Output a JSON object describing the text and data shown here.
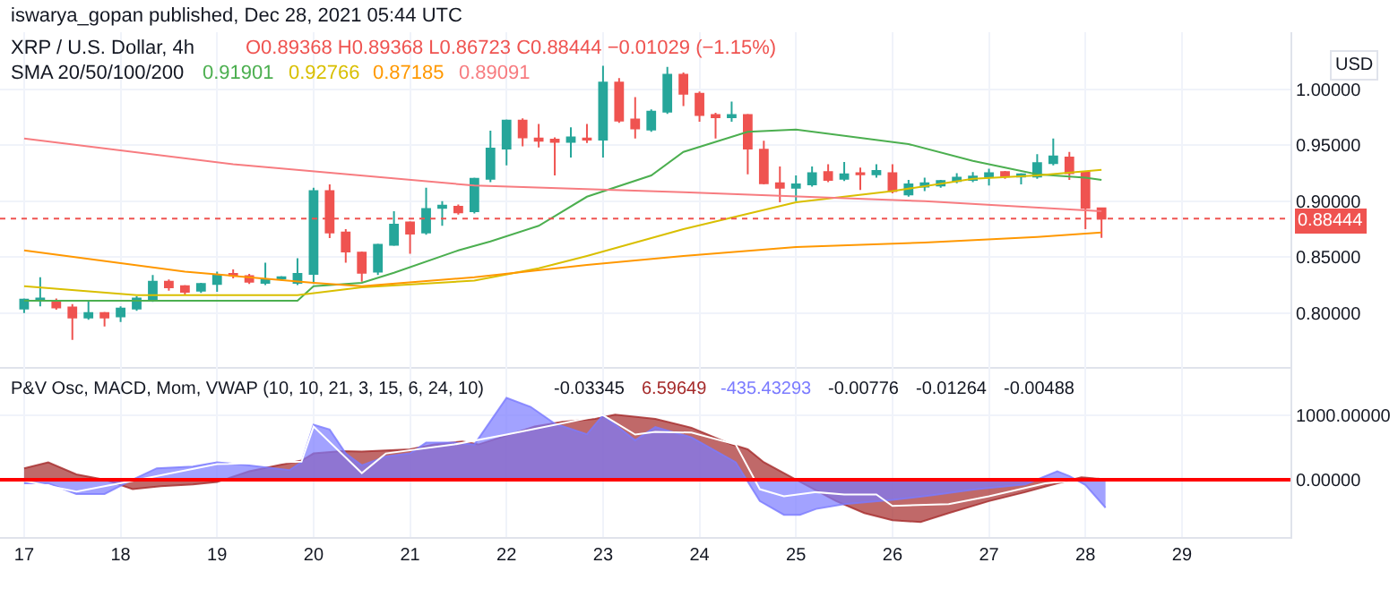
{
  "chart_data": [
    {
      "type": "candlestick",
      "title": "XRP / U.S. Dollar, 4h",
      "subtitle": "O0.89368 H0.89368 L0.86723 C0.88444 −0.01029 (−1.15%)",
      "ylabel": "USD",
      "annotations": [
        "iswarya_gopan published, Dec 28, 2021 05:44 UTC",
        "SMA 20/50/100/200"
      ],
      "x": [
        "2021-12-17T00:00",
        "2021-12-17T04:00",
        "2021-12-17T08:00",
        "2021-12-17T12:00",
        "2021-12-17T16:00",
        "2021-12-17T20:00",
        "2021-12-18T00:00",
        "2021-12-18T04:00",
        "2021-12-18T08:00",
        "2021-12-18T12:00",
        "2021-12-18T16:00",
        "2021-12-18T20:00",
        "2021-12-19T00:00",
        "2021-12-19T04:00",
        "2021-12-19T08:00",
        "2021-12-19T12:00",
        "2021-12-19T16:00",
        "2021-12-19T20:00",
        "2021-12-20T00:00",
        "2021-12-20T04:00",
        "2021-12-20T08:00",
        "2021-12-20T12:00",
        "2021-12-20T16:00",
        "2021-12-20T20:00",
        "2021-12-21T00:00",
        "2021-12-21T04:00",
        "2021-12-21T08:00",
        "2021-12-21T12:00",
        "2021-12-21T16:00",
        "2021-12-21T20:00",
        "2021-12-22T00:00",
        "2021-12-22T04:00",
        "2021-12-22T08:00",
        "2021-12-22T12:00",
        "2021-12-22T16:00",
        "2021-12-22T20:00",
        "2021-12-23T00:00",
        "2021-12-23T04:00",
        "2021-12-23T08:00",
        "2021-12-23T12:00",
        "2021-12-23T16:00",
        "2021-12-23T20:00",
        "2021-12-24T00:00",
        "2021-12-24T04:00",
        "2021-12-24T08:00",
        "2021-12-24T12:00",
        "2021-12-24T16:00",
        "2021-12-24T20:00",
        "2021-12-25T00:00",
        "2021-12-25T04:00",
        "2021-12-25T08:00",
        "2021-12-25T12:00",
        "2021-12-25T16:00",
        "2021-12-25T20:00",
        "2021-12-26T00:00",
        "2021-12-26T04:00",
        "2021-12-26T08:00",
        "2021-12-26T12:00",
        "2021-12-26T16:00",
        "2021-12-26T20:00",
        "2021-12-27T00:00",
        "2021-12-27T04:00",
        "2021-12-27T08:00",
        "2021-12-27T12:00",
        "2021-12-27T16:00",
        "2021-12-27T20:00",
        "2021-12-28T00:00",
        "2021-12-28T04:00"
      ],
      "ohlc": [
        [
          0.804,
          0.813,
          0.8,
          0.812
        ],
        [
          0.811,
          0.832,
          0.806,
          0.813
        ],
        [
          0.811,
          0.813,
          0.803,
          0.805
        ],
        [
          0.805,
          0.808,
          0.776,
          0.796
        ],
        [
          0.796,
          0.811,
          0.794,
          0.8
        ],
        [
          0.8,
          0.801,
          0.788,
          0.796
        ],
        [
          0.797,
          0.806,
          0.792,
          0.804
        ],
        [
          0.804,
          0.815,
          0.802,
          0.813
        ],
        [
          0.812,
          0.834,
          0.81,
          0.828
        ],
        [
          0.828,
          0.83,
          0.82,
          0.823
        ],
        [
          0.824,
          0.825,
          0.816,
          0.819
        ],
        [
          0.82,
          0.827,
          0.818,
          0.826
        ],
        [
          0.826,
          0.837,
          0.819,
          0.834
        ],
        [
          0.835,
          0.839,
          0.831,
          0.834
        ],
        [
          0.833,
          0.835,
          0.826,
          0.828
        ],
        [
          0.827,
          0.845,
          0.825,
          0.83
        ],
        [
          0.831,
          0.833,
          0.829,
          0.832
        ],
        [
          0.827,
          0.849,
          0.825,
          0.835
        ],
        [
          0.835,
          0.912,
          0.826,
          0.909
        ],
        [
          0.909,
          0.915,
          0.867,
          0.872
        ],
        [
          0.872,
          0.875,
          0.845,
          0.855
        ],
        [
          0.854,
          0.855,
          0.828,
          0.836
        ],
        [
          0.837,
          0.862,
          0.834,
          0.861
        ],
        [
          0.861,
          0.891,
          0.86,
          0.879
        ],
        [
          0.881,
          0.882,
          0.853,
          0.871
        ],
        [
          0.872,
          0.912,
          0.87,
          0.893
        ],
        [
          0.894,
          0.9,
          0.878,
          0.896
        ],
        [
          0.895,
          0.897,
          0.888,
          0.89
        ],
        [
          0.891,
          0.921,
          0.889,
          0.92
        ],
        [
          0.92,
          0.963,
          0.917,
          0.947
        ],
        [
          0.947,
          0.973,
          0.932,
          0.972
        ],
        [
          0.972,
          0.974,
          0.949,
          0.957
        ],
        [
          0.956,
          0.969,
          0.948,
          0.954
        ],
        [
          0.955,
          0.957,
          0.923,
          0.953
        ],
        [
          0.953,
          0.966,
          0.939,
          0.957
        ],
        [
          0.956,
          0.969,
          0.952,
          0.955
        ],
        [
          0.955,
          1.021,
          0.939,
          1.006
        ],
        [
          1.006,
          1.01,
          0.97,
          0.972
        ],
        [
          0.973,
          0.993,
          0.956,
          0.965
        ],
        [
          0.964,
          0.982,
          0.962,
          0.98
        ],
        [
          0.98,
          1.02,
          0.978,
          1.013
        ],
        [
          1.013,
          1.015,
          0.985,
          0.996
        ],
        [
          0.996,
          0.998,
          0.971,
          0.977
        ],
        [
          0.977,
          0.979,
          0.956,
          0.975
        ],
        [
          0.975,
          0.989,
          0.971,
          0.977
        ],
        [
          0.977,
          0.978,
          0.924,
          0.947
        ],
        [
          0.946,
          0.954,
          0.915,
          0.916
        ],
        [
          0.916,
          0.931,
          0.899,
          0.912
        ],
        [
          0.912,
          0.923,
          0.9,
          0.915
        ],
        [
          0.915,
          0.931,
          0.913,
          0.925
        ],
        [
          0.926,
          0.933,
          0.917,
          0.919
        ],
        [
          0.92,
          0.935,
          0.918,
          0.924
        ],
        [
          0.925,
          0.93,
          0.91,
          0.924
        ],
        [
          0.924,
          0.933,
          0.921,
          0.927
        ],
        [
          0.925,
          0.933,
          0.907,
          0.909
        ],
        [
          0.906,
          0.919,
          0.904,
          0.915
        ],
        [
          0.913,
          0.921,
          0.909,
          0.916
        ],
        [
          0.914,
          0.919,
          0.912,
          0.918
        ],
        [
          0.918,
          0.925,
          0.916,
          0.921
        ],
        [
          0.919,
          0.926,
          0.917,
          0.922
        ],
        [
          0.922,
          0.929,
          0.914,
          0.925
        ],
        [
          0.926,
          0.927,
          0.92,
          0.922
        ],
        [
          0.922,
          0.925,
          0.915,
          0.924
        ],
        [
          0.922,
          0.942,
          0.92,
          0.934
        ],
        [
          0.934,
          0.956,
          0.932,
          0.94
        ],
        [
          0.939,
          0.944,
          0.919,
          0.925
        ],
        [
          0.926,
          0.927,
          0.875,
          0.894
        ],
        [
          0.89368,
          0.89368,
          0.86723,
          0.88444
        ]
      ],
      "colors": [
        "#26a69a",
        "#26a69a",
        "#ef5350",
        "#ef5350",
        "#26a69a",
        "#ef5350",
        "#26a69a",
        "#26a69a",
        "#26a69a",
        "#ef5350",
        "#ef5350",
        "#26a69a",
        "#26a69a",
        "#ef5350",
        "#ef5350",
        "#26a69a",
        "#26a69a",
        "#26a69a",
        "#26a69a",
        "#ef5350",
        "#ef5350",
        "#ef5350",
        "#26a69a",
        "#26a69a",
        "#ef5350",
        "#26a69a",
        "#26a69a",
        "#ef5350",
        "#26a69a",
        "#26a69a",
        "#26a69a",
        "#ef5350",
        "#ef5350",
        "#ef5350",
        "#26a69a",
        "#ef5350",
        "#26a69a",
        "#ef5350",
        "#ef5350",
        "#26a69a",
        "#26a69a",
        "#ef5350",
        "#ef5350",
        "#ef5350",
        "#26a69a",
        "#ef5350",
        "#ef5350",
        "#ef5350",
        "#26a69a",
        "#26a69a",
        "#ef5350",
        "#26a69a",
        "#ef5350",
        "#26a69a",
        "#ef5350",
        "#26a69a",
        "#26a69a",
        "#26a69a",
        "#26a69a",
        "#26a69a",
        "#26a69a",
        "#ef5350",
        "#26a69a",
        "#26a69a",
        "#26a69a",
        "#ef5350",
        "#ef5350",
        "#ef5350"
      ],
      "series": [
        {
          "type": "line",
          "name": "0.91901",
          "color": "#4caf50",
          "x": [
            "2021-12-17T00:00",
            "2021-12-19T20:00",
            "2021-12-20T00:00",
            "2021-12-20T12:00",
            "2021-12-20T20:00",
            "2021-12-21T12:00",
            "2021-12-21T20:00",
            "2021-12-22T08:00",
            "2021-12-22T20:00",
            "2021-12-23T12:00",
            "2021-12-23T20:00",
            "2021-12-24T12:00",
            "2021-12-25T00:00",
            "2021-12-26T04:00",
            "2021-12-26T20:00",
            "2021-12-27T12:00",
            "2021-12-28T00:00",
            "2021-12-28T04:00"
          ],
          "values": [
            0.811,
            0.811,
            0.824,
            0.827,
            0.836,
            0.856,
            0.864,
            0.878,
            0.904,
            0.923,
            0.944,
            0.962,
            0.964,
            0.951,
            0.936,
            0.924,
            0.921,
            0.919
          ]
        },
        {
          "type": "line",
          "name": "0.92766",
          "color": "#d9bf00",
          "x": [
            "2021-12-17T00:00",
            "2021-12-18T04:00",
            "2021-12-19T20:00",
            "2021-12-20T12:00",
            "2021-12-21T16:00",
            "2021-12-22T08:00",
            "2021-12-22T20:00",
            "2021-12-23T20:00",
            "2021-12-25T00:00",
            "2021-12-26T00:00",
            "2021-12-26T20:00",
            "2021-12-27T12:00",
            "2021-12-28T04:00"
          ],
          "values": [
            0.824,
            0.816,
            0.816,
            0.823,
            0.829,
            0.84,
            0.851,
            0.875,
            0.899,
            0.909,
            0.92,
            0.923,
            0.928
          ]
        },
        {
          "type": "line",
          "name": "0.87185",
          "color": "#ff9800",
          "x": [
            "2021-12-17T00:00",
            "2021-12-18T16:00",
            "2021-12-20T00:00",
            "2021-12-20T12:00",
            "2021-12-21T16:00",
            "2021-12-22T20:00",
            "2021-12-23T20:00",
            "2021-12-25T00:00",
            "2021-12-26T08:00",
            "2021-12-27T12:00",
            "2021-12-28T04:00"
          ],
          "values": [
            0.856,
            0.837,
            0.827,
            0.824,
            0.832,
            0.843,
            0.851,
            0.859,
            0.863,
            0.868,
            0.872
          ]
        },
        {
          "type": "line",
          "name": "0.89091",
          "color": "#f77c80",
          "x": [
            "2021-12-17T00:00",
            "2021-12-19T04:00",
            "2021-12-21T16:00",
            "2021-12-23T20:00",
            "2021-12-26T08:00",
            "2021-12-28T04:00"
          ],
          "values": [
            0.956,
            0.933,
            0.914,
            0.908,
            0.9,
            0.891
          ]
        }
      ],
      "ref_lines": [
        {
          "axis": "y",
          "value": 0.88444,
          "label": "0.88444",
          "color": "#ef5350",
          "line_style": "dotted"
        }
      ],
      "xlim": [
        "2021-12-16T18:00",
        "2021-12-30T03:00"
      ],
      "ylim": [
        0.752,
        1.051
      ],
      "yticks": [
        {
          "value": 0.8,
          "label": "0.80000"
        },
        {
          "value": 0.85,
          "label": "0.85000"
        },
        {
          "value": 0.9,
          "label": "0.90000"
        },
        {
          "value": 0.95,
          "label": "0.95000"
        },
        {
          "value": 1.0,
          "label": "1.00000"
        }
      ],
      "grid": true,
      "tick_labels": "y"
    },
    {
      "type": "area",
      "title": "P&V Osc, MACD, Mom, VWAP (10, 10, 21, 3, 15, 6, 24, 10)",
      "annotations": [
        "-0.03345",
        "-0.00776",
        "-0.01264",
        "-0.00488"
      ],
      "series": [
        {
          "type": "area",
          "name": "6.59649",
          "color": "#a52a2a",
          "x": [
            "2021-12-17T00:00",
            "2021-12-17T06:00",
            "2021-12-17T13:00",
            "2021-12-17T20:00",
            "2021-12-18T03:00",
            "2021-12-18T10:00",
            "2021-12-18T18:00",
            "2021-12-19T00:00",
            "2021-12-19T08:00",
            "2021-12-19T21:00",
            "2021-12-20T00:00",
            "2021-12-20T07:00",
            "2021-12-20T12:00",
            "2021-12-20T18:00",
            "2021-12-21T00:00",
            "2021-12-21T06:00",
            "2021-12-21T13:00",
            "2021-12-21T17:00",
            "2021-12-22T00:00",
            "2021-12-22T07:00",
            "2021-12-22T14:00",
            "2021-12-22T22:00",
            "2021-12-23T03:00",
            "2021-12-23T13:00",
            "2021-12-23T22:00",
            "2021-12-24T08:00",
            "2021-12-24T12:00",
            "2021-12-24T16:00",
            "2021-12-25T00:00",
            "2021-12-25T10:00",
            "2021-12-25T17:00",
            "2021-12-26T00:00",
            "2021-12-26T07:00",
            "2021-12-26T14:00",
            "2021-12-27T00:00",
            "2021-12-27T09:00",
            "2021-12-27T17:00",
            "2021-12-27T23:00",
            "2021-12-28T05:00"
          ],
          "values": [
            176,
            270,
            83,
            0,
            -148,
            -102,
            -74,
            -37,
            130,
            296,
            407,
            444,
            435,
            454,
            472,
            546,
            592,
            546,
            685,
            824,
            898,
            944,
            1009,
            944,
            805,
            546,
            472,
            270,
            0,
            -333,
            -518,
            -630,
            -657,
            -518,
            -333,
            -194,
            -56,
            37,
            7
          ]
        },
        {
          "type": "area",
          "name": "-435.43293",
          "color": "#7b7bff",
          "x": [
            "2021-12-17T00:00",
            "2021-12-17T06:00",
            "2021-12-17T13:00",
            "2021-12-17T20:00",
            "2021-12-18T03:00",
            "2021-12-18T09:00",
            "2021-12-18T18:00",
            "2021-12-19T00:00",
            "2021-12-19T08:00",
            "2021-12-19T18:00",
            "2021-12-19T21:00",
            "2021-12-20T00:00",
            "2021-12-20T04:00",
            "2021-12-20T08:00",
            "2021-12-20T12:00",
            "2021-12-20T18:00",
            "2021-12-21T00:00",
            "2021-12-21T04:00",
            "2021-12-21T11:00",
            "2021-12-21T16:00",
            "2021-12-22T00:00",
            "2021-12-22T06:00",
            "2021-12-22T12:00",
            "2021-12-22T20:00",
            "2021-12-23T00:00",
            "2021-12-23T08:00",
            "2021-12-23T13:00",
            "2021-12-23T22:00",
            "2021-12-24T09:00",
            "2021-12-24T15:00",
            "2021-12-24T21:00",
            "2021-12-25T01:00",
            "2021-12-25T05:00",
            "2021-12-25T12:00",
            "2021-12-26T00:00",
            "2021-12-26T10:00",
            "2021-12-26T21:00",
            "2021-12-27T09:00",
            "2021-12-27T17:00",
            "2021-12-27T20:00",
            "2021-12-28T00:00",
            "2021-12-28T05:00"
          ],
          "values": [
            -56,
            -56,
            -222,
            -222,
            0,
            176,
            204,
            270,
            222,
            148,
            270,
            852,
            778,
            407,
            222,
            361,
            407,
            574,
            574,
            546,
            1269,
            1130,
            870,
            704,
            1000,
            611,
            815,
            657,
            270,
            -333,
            -546,
            -546,
            -454,
            -380,
            -315,
            -240,
            -148,
            -74,
            130,
            55,
            -83,
            -435
          ]
        },
        {
          "type": "line",
          "color": "#ffffff",
          "x": [
            "2021-12-17T00:00",
            "2021-12-17T13:00",
            "2021-12-18T03:00",
            "2021-12-19T00:00",
            "2021-12-19T21:00",
            "2021-12-20T00:00",
            "2021-12-20T12:00",
            "2021-12-20T18:00",
            "2021-12-21T11:00",
            "2021-12-22T00:00",
            "2021-12-23T00:00",
            "2021-12-23T08:00",
            "2021-12-23T13:00",
            "2021-12-23T22:00",
            "2021-12-24T09:00",
            "2021-12-24T15:00",
            "2021-12-24T21:00",
            "2021-12-25T05:00",
            "2021-12-25T12:00",
            "2021-12-25T20:00",
            "2021-12-26T00:00",
            "2021-12-26T14:00",
            "2021-12-27T00:00",
            "2021-12-27T14:00",
            "2021-12-28T03:00"
          ],
          "values": [
            -20,
            -185,
            -20,
            240,
            280,
            824,
            102,
            407,
            546,
            700,
            1000,
            700,
            740,
            731,
            546,
            -148,
            -259,
            -194,
            -231,
            -231,
            -407,
            -380,
            -259,
            -56,
            19
          ]
        }
      ],
      "ref_lines": [
        {
          "axis": "y",
          "value": 0,
          "color": "#ff0000"
        }
      ],
      "xlim": [
        "2021-12-16T18:00",
        "2021-12-30T03:00"
      ],
      "xticks": [
        {
          "value": "2021-12-17",
          "label": "17"
        },
        {
          "value": "2021-12-18",
          "label": "18"
        },
        {
          "value": "2021-12-19",
          "label": "19"
        },
        {
          "value": "2021-12-20",
          "label": "20"
        },
        {
          "value": "2021-12-21",
          "label": "21"
        },
        {
          "value": "2021-12-22",
          "label": "22"
        },
        {
          "value": "2021-12-23",
          "label": "23"
        },
        {
          "value": "2021-12-24",
          "label": "24"
        },
        {
          "value": "2021-12-25",
          "label": "25"
        },
        {
          "value": "2021-12-26",
          "label": "26"
        },
        {
          "value": "2021-12-27",
          "label": "27"
        },
        {
          "value": "2021-12-28",
          "label": "28"
        },
        {
          "value": "2021-12-29",
          "label": "29"
        }
      ],
      "ylim": [
        -890,
        1751
      ],
      "yticks": [
        {
          "value": 0,
          "label": "0.00000"
        },
        {
          "value": 1000,
          "label": "1000.00000"
        }
      ],
      "grid": true
    }
  ]
}
